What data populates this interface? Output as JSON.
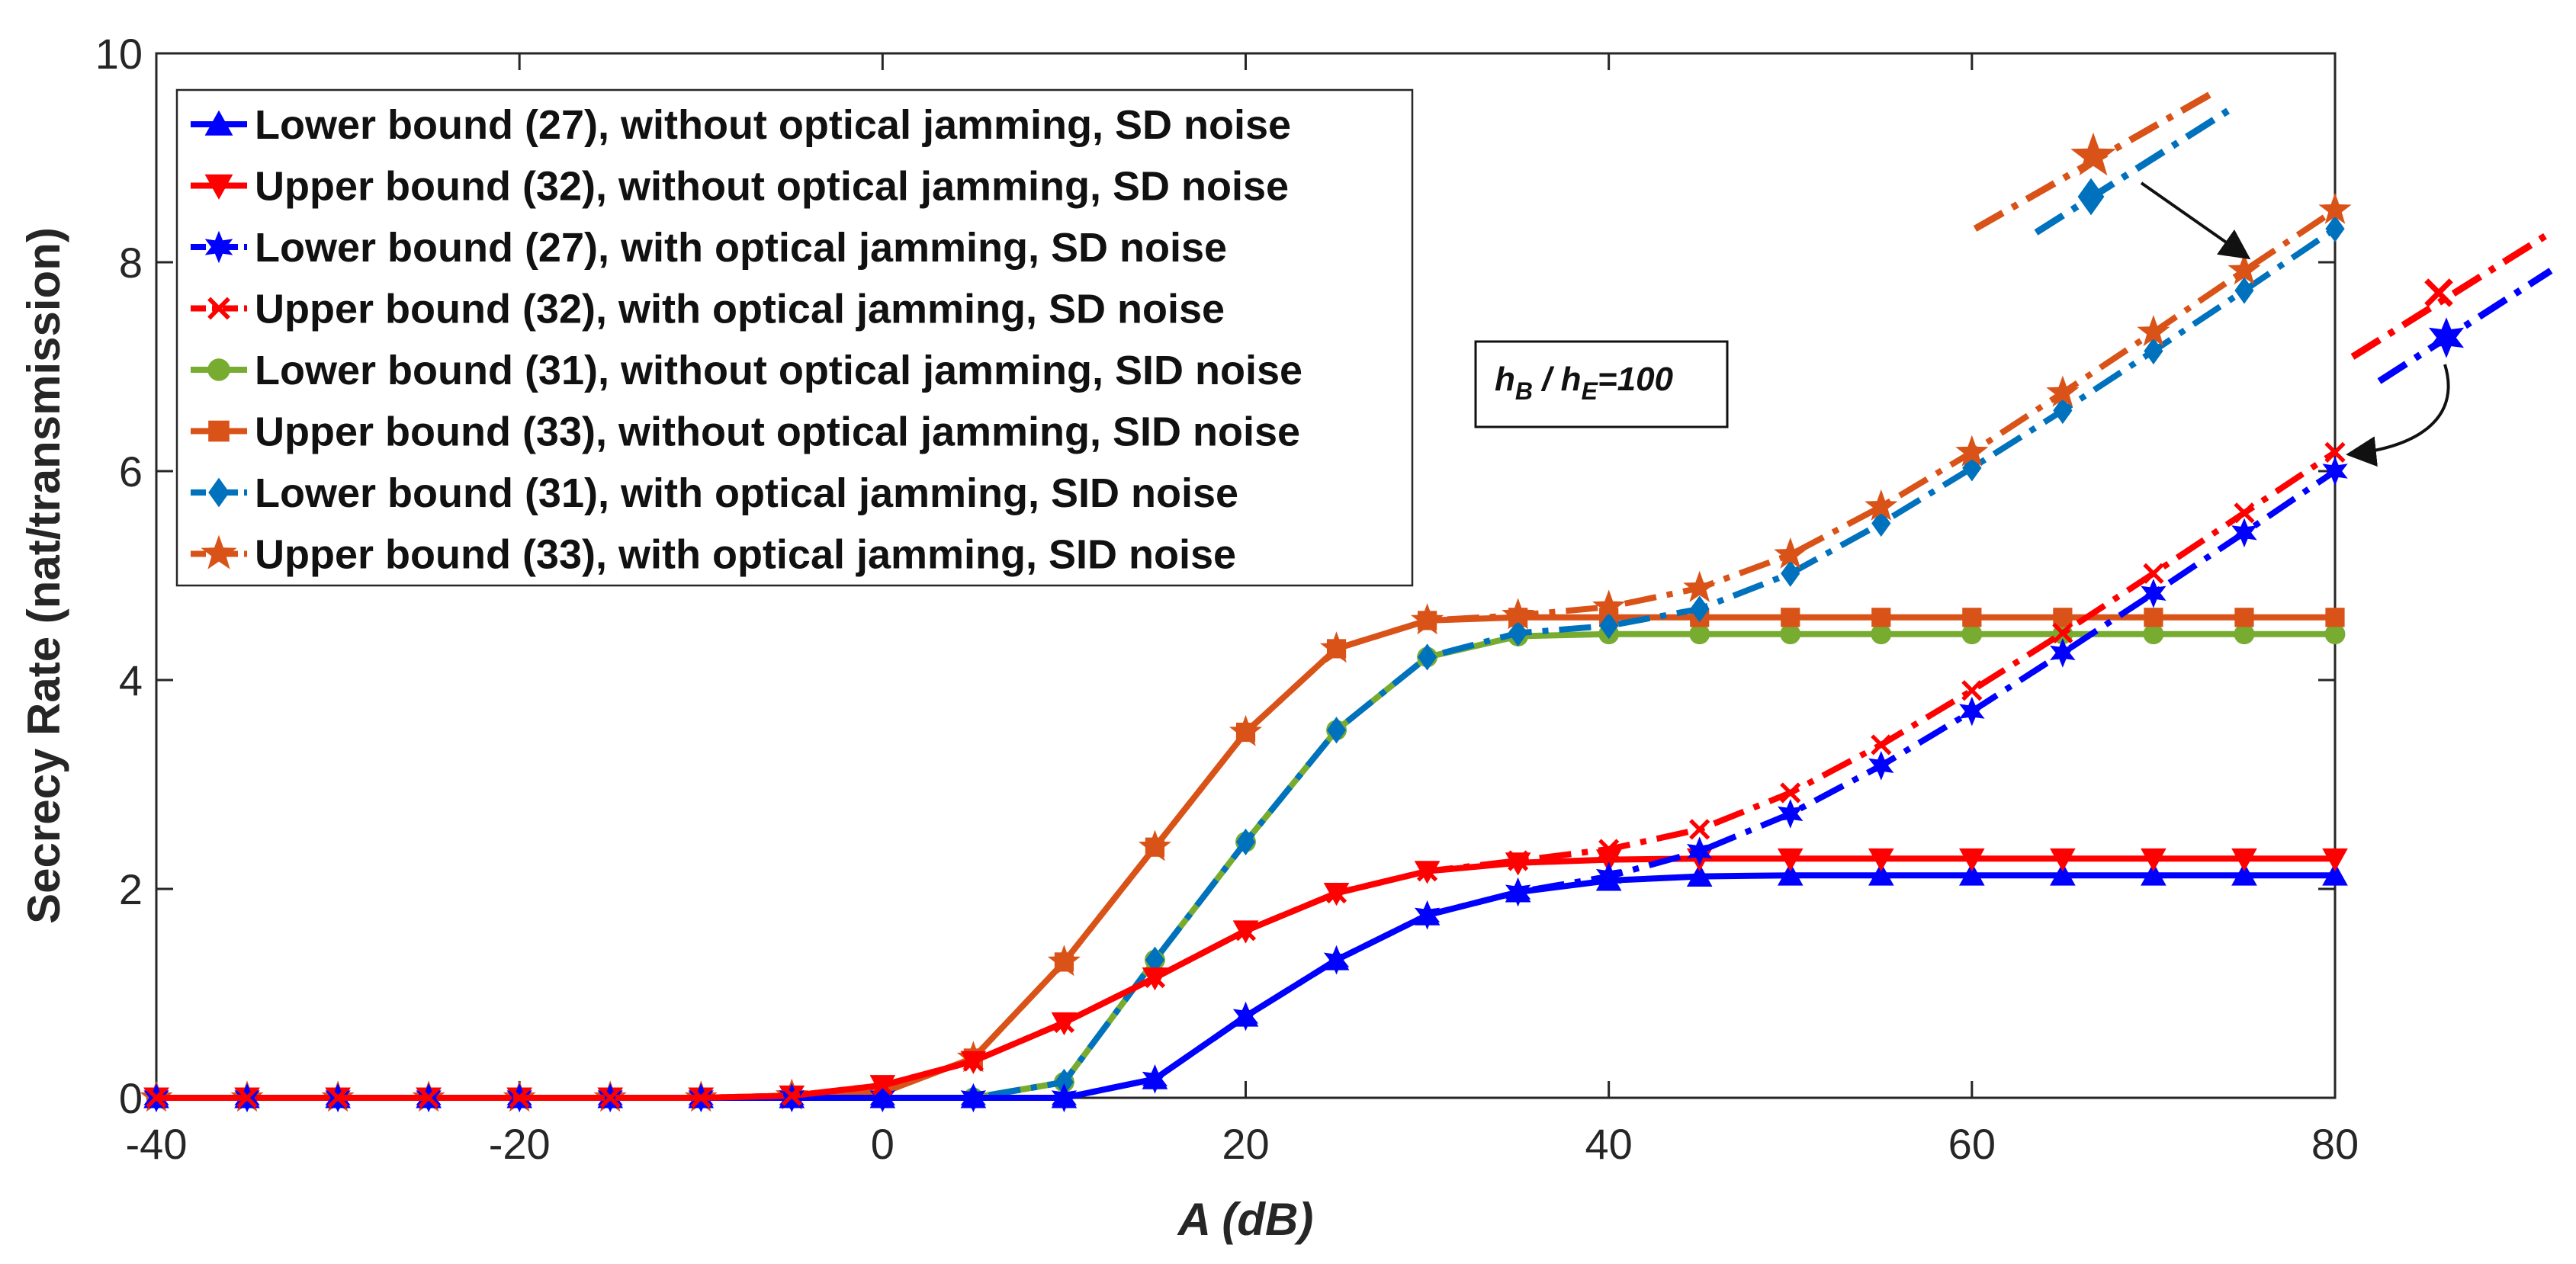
{
  "chart_data": {
    "type": "line",
    "title": "",
    "xlabel": "A (dB)",
    "ylabel": "Secrecy Rate (nat/transmission)",
    "xlim": [
      -40,
      80
    ],
    "ylim": [
      0,
      10
    ],
    "xticks": [
      "-40",
      "-20",
      "0",
      "20",
      "40",
      "60",
      "80"
    ],
    "xtick_values": [
      -40,
      -20,
      0,
      20,
      40,
      60,
      80
    ],
    "yticks": [
      "0",
      "2",
      "4",
      "6",
      "8",
      "10"
    ],
    "ytick_values": [
      0,
      2,
      4,
      6,
      8,
      10
    ],
    "grid": false,
    "legend_position": "top-left",
    "x": [
      -40,
      -35,
      -30,
      -25,
      -20,
      -15,
      -10,
      -5,
      0,
      5,
      10,
      15,
      20,
      25,
      30,
      35,
      40,
      45,
      50,
      55,
      60,
      65,
      70,
      75,
      80
    ],
    "series": [
      {
        "name": "Lower bound (27), without optical jamming, SD noise",
        "color": "#0000ff",
        "dash": "solid",
        "marker": "triangle-up",
        "values": [
          0,
          0,
          0,
          0,
          0,
          0,
          0,
          0,
          0,
          0,
          0,
          0.18,
          0.78,
          1.32,
          1.75,
          1.97,
          2.08,
          2.12,
          2.13,
          2.13,
          2.13,
          2.13,
          2.13,
          2.13,
          2.13
        ]
      },
      {
        "name": "Upper bound (32), without optical jamming, SD noise",
        "color": "#ff0000",
        "dash": "solid",
        "marker": "triangle-down",
        "values": [
          0,
          0,
          0,
          0,
          0,
          0,
          0,
          0.02,
          0.12,
          0.35,
          0.72,
          1.15,
          1.6,
          1.96,
          2.17,
          2.25,
          2.28,
          2.29,
          2.29,
          2.29,
          2.29,
          2.29,
          2.29,
          2.29,
          2.29
        ]
      },
      {
        "name": "Lower bound (27), with optical jamming, SD noise",
        "color": "#0000ff",
        "dash": "dashdot",
        "marker": "hexagram",
        "values": [
          0,
          0,
          0,
          0,
          0,
          0,
          0,
          0,
          0,
          0,
          0,
          0.18,
          0.78,
          1.32,
          1.75,
          1.97,
          2.12,
          2.36,
          2.72,
          3.18,
          3.7,
          4.26,
          4.83,
          5.41,
          6.0
        ]
      },
      {
        "name": "Upper bound (32), with optical jamming, SD noise",
        "color": "#ff0000",
        "dash": "dashdot",
        "marker": "x",
        "values": [
          0,
          0,
          0,
          0,
          0,
          0,
          0,
          0.02,
          0.12,
          0.35,
          0.72,
          1.15,
          1.6,
          1.96,
          2.17,
          2.27,
          2.38,
          2.57,
          2.92,
          3.38,
          3.9,
          4.45,
          5.02,
          5.6,
          6.18
        ]
      },
      {
        "name": "Lower bound (31), without optical jamming, SID noise",
        "color": "#77ac30",
        "dash": "solid",
        "marker": "circle",
        "values": [
          0,
          0,
          0,
          0,
          0,
          0,
          0,
          0,
          0,
          0,
          0.15,
          1.32,
          2.45,
          3.52,
          4.22,
          4.42,
          4.44,
          4.44,
          4.44,
          4.44,
          4.44,
          4.44,
          4.44,
          4.44,
          4.44
        ]
      },
      {
        "name": "Upper bound (33), without optical jamming, SID noise",
        "color": "#d95319",
        "dash": "solid",
        "marker": "square",
        "values": [
          0,
          0,
          0,
          0,
          0,
          0,
          0,
          0.02,
          0.05,
          0.38,
          1.3,
          2.4,
          3.5,
          4.3,
          4.57,
          4.6,
          4.6,
          4.6,
          4.6,
          4.6,
          4.6,
          4.6,
          4.6,
          4.6,
          4.6
        ]
      },
      {
        "name": "Lower bound (31), with optical jamming, SID noise",
        "color": "#0072bd",
        "dash": "dashdot",
        "marker": "diamond",
        "values": [
          0,
          0,
          0,
          0,
          0,
          0,
          0,
          0,
          0,
          0,
          0.15,
          1.32,
          2.45,
          3.52,
          4.22,
          4.45,
          4.52,
          4.68,
          5.02,
          5.5,
          6.03,
          6.58,
          7.15,
          7.73,
          8.32
        ]
      },
      {
        "name": "Upper bound (33), with optical jamming, SID noise",
        "color": "#d95319",
        "dash": "dashdot",
        "marker": "pentagram",
        "values": [
          0,
          0,
          0,
          0,
          0,
          0,
          0,
          0.02,
          0.05,
          0.38,
          1.3,
          2.4,
          3.5,
          4.3,
          4.57,
          4.62,
          4.7,
          4.88,
          5.2,
          5.66,
          6.18,
          6.75,
          7.33,
          7.92,
          8.5
        ]
      }
    ],
    "annotation": {
      "main": "h",
      "sub1": "B",
      "sep": " / h",
      "sub2": "E",
      "suffix": "=100"
    }
  }
}
